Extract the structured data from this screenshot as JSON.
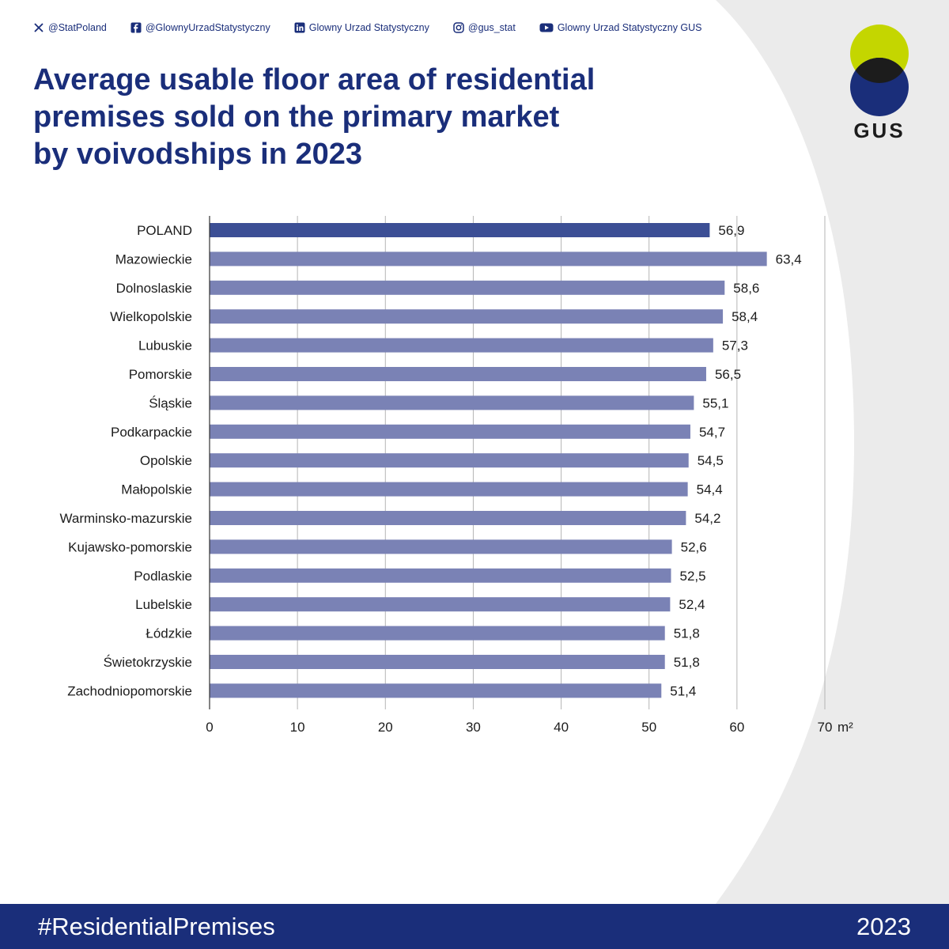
{
  "social": [
    {
      "icon": "x-icon",
      "label": "@StatPoland"
    },
    {
      "icon": "facebook-icon",
      "label": "@GlownyUrzadStatystyczny"
    },
    {
      "icon": "linkedin-icon",
      "label": "Glowny Urzad Statystyczny"
    },
    {
      "icon": "instagram-icon",
      "label": "@gus_stat"
    },
    {
      "icon": "youtube-icon",
      "label": "Glowny Urzad Statystyczny GUS"
    }
  ],
  "title_lines": [
    "Average usable floor area of residential",
    "premises sold on the primary market",
    "by voivodships in 2023"
  ],
  "logo": {
    "text": "GUS",
    "colors": {
      "green": "#c4d600",
      "navy": "#1a2e7a",
      "overlap": "#1c1c1c"
    }
  },
  "colors": {
    "poland_bar": "#3c4f95",
    "region_bar": "#7a82b5",
    "accent": "#1a2e7a",
    "grid": "#b5b5b5"
  },
  "chart_data": {
    "type": "bar",
    "orientation": "horizontal",
    "categories": [
      "POLAND",
      "Mazowieckie",
      "Dolnoslaskie",
      "Wielkopolskie",
      "Lubuskie",
      "Pomorskie",
      "Śląskie",
      "Podkarpackie",
      "Opolskie",
      "Małopolskie",
      "Warminsko-mazurskie",
      "Kujawsko-pomorskie",
      "Podlaskie",
      "Lubelskie",
      "Łódzkie",
      "Świetokrzyskie",
      "Zachodniopomorskie"
    ],
    "values": [
      56.9,
      63.4,
      58.6,
      58.4,
      57.3,
      56.5,
      55.1,
      54.7,
      54.5,
      54.4,
      54.2,
      52.6,
      52.5,
      52.4,
      51.8,
      51.8,
      51.4
    ],
    "value_labels": [
      "56,9",
      "63,4",
      "58,6",
      "58,4",
      "57,3",
      "56,5",
      "55,1",
      "54,7",
      "54,5",
      "54,4",
      "54,2",
      "52,6",
      "52,5",
      "52,4",
      "51,8",
      "51,8",
      "51,4"
    ],
    "xticks": [
      "0",
      "10",
      "20",
      "30",
      "40",
      "50",
      "60",
      "70"
    ],
    "x_unit": "m²",
    "xlim": [
      0,
      70
    ],
    "grid": true,
    "legend": "none"
  },
  "footer": {
    "hashtag": "#ResidentialPremises",
    "year": "2023"
  }
}
